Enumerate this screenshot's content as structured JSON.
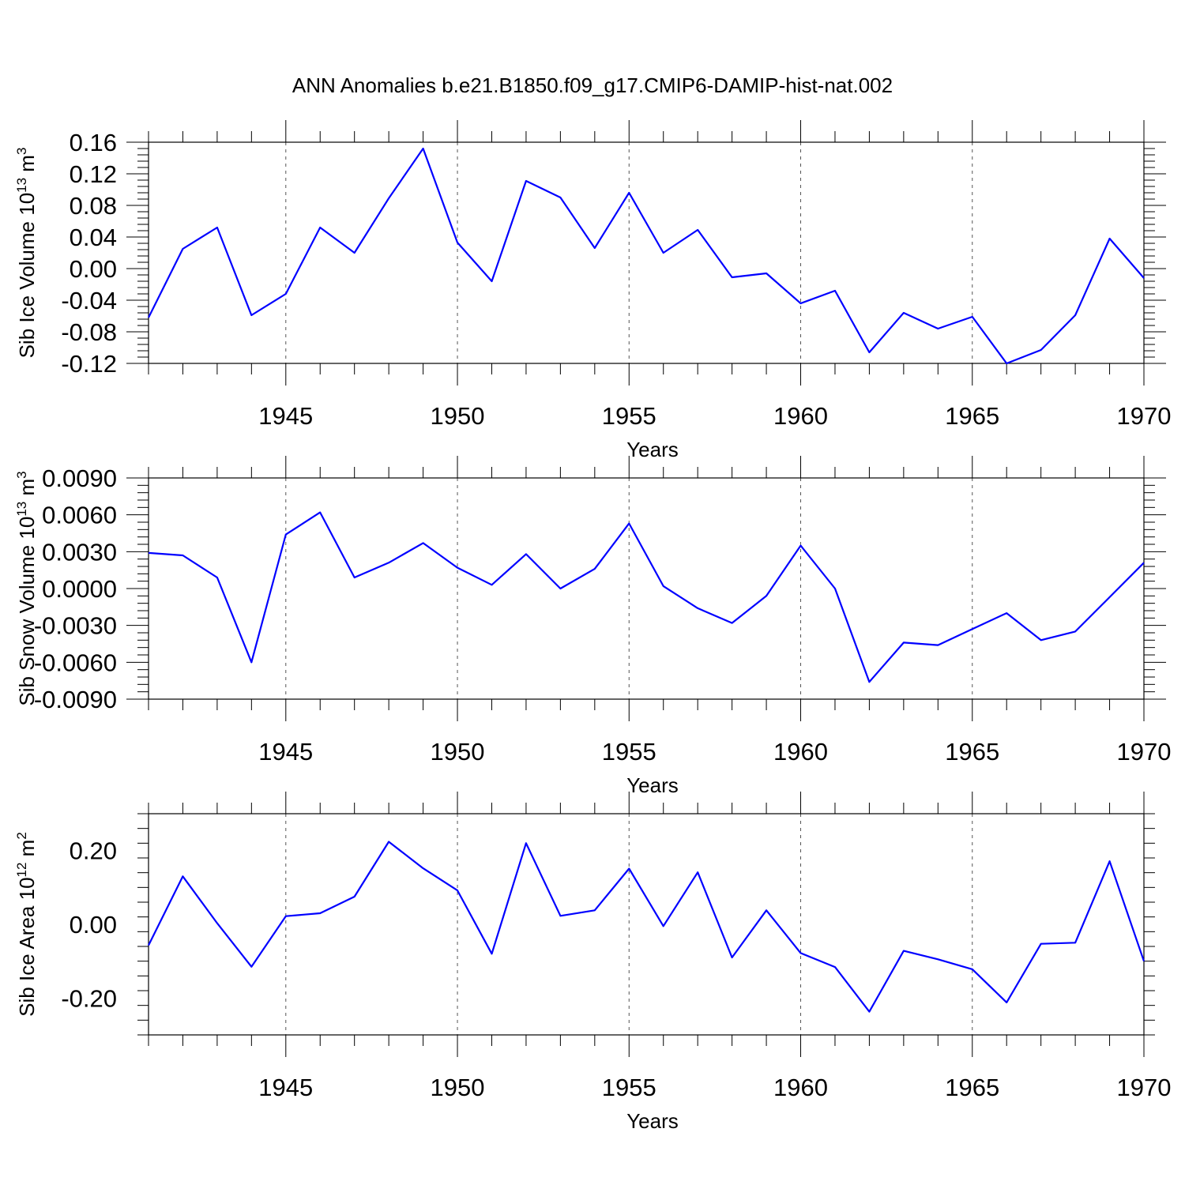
{
  "title": "ANN Anomalies b.e21.B1850.f09_g17.CMIP6-DAMIP-hist-nat.002",
  "series_color": "#0000ff",
  "chart_data": [
    {
      "type": "line",
      "ylabel": "Sib Ice Volume 10",
      "ylabel_sup": "13",
      "ylabel_unit": " m",
      "ylabel_unit_sup": "3",
      "xlabel": "Years",
      "xlim": [
        1941,
        1970
      ],
      "ylim": [
        -0.12,
        0.16
      ],
      "x_ticks": [
        1945,
        1950,
        1955,
        1960,
        1965,
        1970
      ],
      "x_tick_labels": [
        "1945",
        "1950",
        "1955",
        "1960",
        "1965",
        "1970"
      ],
      "y_ticks": [
        -0.12,
        -0.08,
        -0.04,
        0.0,
        0.04,
        0.08,
        0.12,
        0.16
      ],
      "y_tick_labels": [
        "-0.12",
        "-0.08",
        "-0.04",
        "0.00",
        "0.04",
        "0.08",
        "0.12",
        "0.16"
      ],
      "grid": "dashed vertical at major x ticks",
      "x": [
        1941,
        1942,
        1943,
        1944,
        1945,
        1946,
        1947,
        1948,
        1949,
        1950,
        1951,
        1952,
        1953,
        1954,
        1955,
        1956,
        1957,
        1958,
        1959,
        1960,
        1961,
        1962,
        1963,
        1964,
        1965,
        1966,
        1967,
        1968,
        1969,
        1970
      ],
      "values": [
        -0.062,
        0.025,
        0.052,
        -0.059,
        -0.032,
        0.052,
        0.02,
        0.089,
        0.152,
        0.033,
        -0.016,
        0.111,
        0.09,
        0.026,
        0.096,
        0.02,
        0.049,
        -0.011,
        -0.006,
        -0.044,
        -0.028,
        -0.106,
        -0.056,
        -0.076,
        -0.061,
        -0.12,
        -0.103,
        -0.059,
        0.038,
        -0.012
      ]
    },
    {
      "type": "line",
      "ylabel": "Sib Snow Volume 10",
      "ylabel_sup": "13",
      "ylabel_unit": " m",
      "ylabel_unit_sup": "3",
      "xlabel": "Years",
      "xlim": [
        1941,
        1970
      ],
      "ylim": [
        -0.009,
        0.009
      ],
      "x_ticks": [
        1945,
        1950,
        1955,
        1960,
        1965,
        1970
      ],
      "x_tick_labels": [
        "1945",
        "1950",
        "1955",
        "1960",
        "1965",
        "1970"
      ],
      "y_ticks": [
        -0.009,
        -0.006,
        -0.003,
        0.0,
        0.003,
        0.006,
        0.009
      ],
      "y_tick_labels": [
        "-0.0090",
        "-0.0060",
        "-0.0030",
        "0.0000",
        "0.0030",
        "0.0060",
        "0.0090"
      ],
      "grid": "dashed vertical at major x ticks",
      "x": [
        1941,
        1942,
        1943,
        1944,
        1945,
        1946,
        1947,
        1948,
        1949,
        1950,
        1951,
        1952,
        1953,
        1954,
        1955,
        1956,
        1957,
        1958,
        1959,
        1960,
        1961,
        1962,
        1963,
        1964,
        1965,
        1966,
        1967,
        1968,
        1969,
        1970
      ],
      "values": [
        0.0029,
        0.0027,
        0.0009,
        -0.006,
        0.0044,
        0.0062,
        0.0009,
        0.0021,
        0.0037,
        0.0017,
        0.0003,
        0.0028,
        0.0,
        0.0016,
        0.0053,
        0.0002,
        -0.0016,
        -0.0028,
        -0.0006,
        0.0035,
        0.0,
        -0.0076,
        -0.0044,
        -0.0046,
        -0.0033,
        -0.002,
        -0.0042,
        -0.0035,
        -0.0007,
        0.0021
      ]
    },
    {
      "type": "line",
      "ylabel": "Sib Ice Area 10",
      "ylabel_sup": "12",
      "ylabel_unit": " m",
      "ylabel_unit_sup": "2",
      "xlabel": "Years",
      "xlim": [
        1941,
        1970
      ],
      "ylim": [
        -0.3,
        0.3
      ],
      "x_ticks": [
        1945,
        1950,
        1955,
        1960,
        1965,
        1970
      ],
      "x_tick_labels": [
        "1945",
        "1950",
        "1955",
        "1960",
        "1965",
        "1970"
      ],
      "y_ticks": [
        -0.2,
        0.0,
        0.2
      ],
      "y_tick_labels": [
        "-0.20",
        "0.00",
        "0.20"
      ],
      "grid": "dashed vertical at major x ticks",
      "x": [
        1941,
        1942,
        1943,
        1944,
        1945,
        1946,
        1947,
        1948,
        1949,
        1950,
        1951,
        1952,
        1953,
        1954,
        1955,
        1956,
        1957,
        1958,
        1959,
        1960,
        1961,
        1962,
        1963,
        1964,
        1965,
        1966,
        1967,
        1968,
        1969,
        1970
      ],
      "values": [
        -0.057,
        0.13,
        0.003,
        -0.115,
        0.022,
        0.03,
        0.075,
        0.224,
        0.152,
        0.092,
        -0.08,
        0.22,
        0.023,
        0.038,
        0.151,
        -0.005,
        0.141,
        -0.09,
        0.038,
        -0.078,
        -0.116,
        -0.237,
        -0.072,
        -0.095,
        -0.122,
        -0.212,
        -0.053,
        -0.05,
        0.171,
        -0.1
      ]
    }
  ]
}
